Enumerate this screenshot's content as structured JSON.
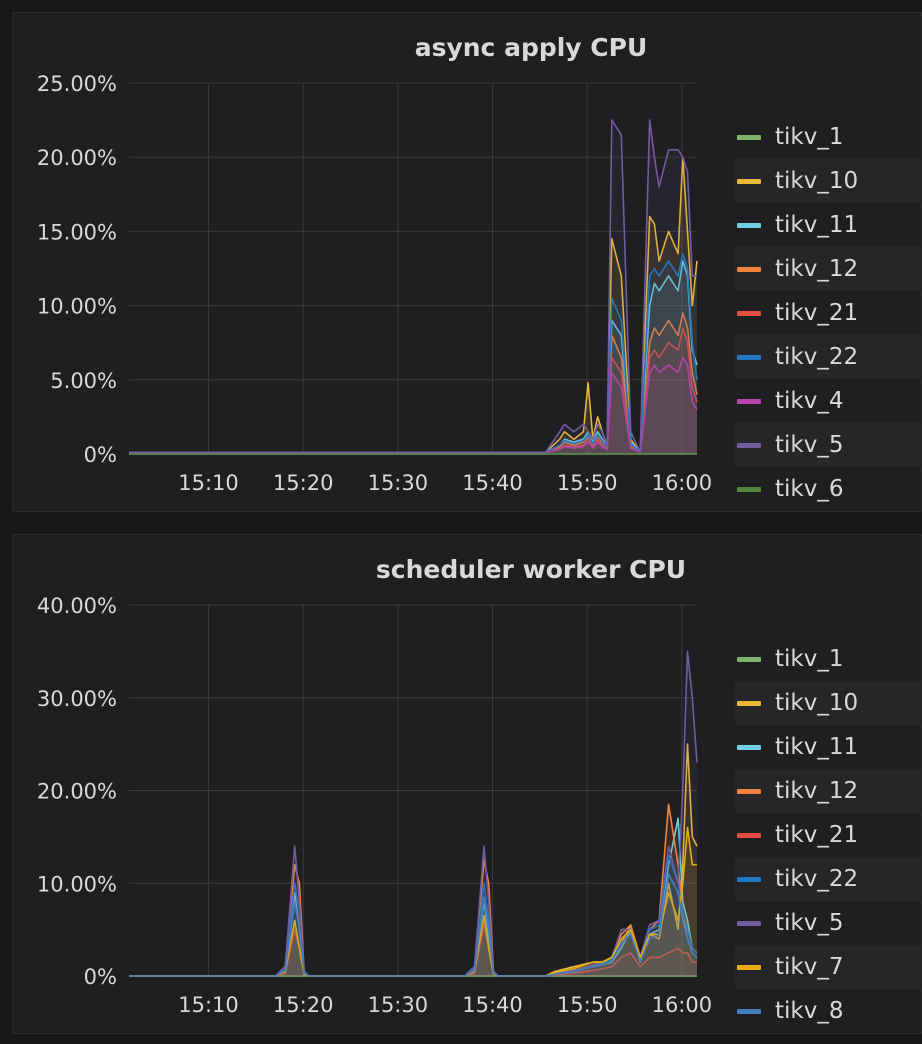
{
  "chart_data": [
    {
      "type": "line",
      "title": "async apply CPU",
      "xlabel": "",
      "ylabel": "",
      "y_unit": "percent",
      "ylim": [
        0,
        25
      ],
      "y_ticks": [
        "0%",
        "5.00%",
        "10.00%",
        "15.00%",
        "20.00%",
        "25.00%"
      ],
      "y_tick_values": [
        0,
        5,
        10,
        15,
        20,
        25
      ],
      "x_ticks": [
        "15:10",
        "15:20",
        "15:30",
        "15:40",
        "15:50",
        "16:00"
      ],
      "x_range_minutes": [
        0,
        60
      ],
      "x_tick_values": [
        8.4,
        18.4,
        28.4,
        38.4,
        48.4,
        58.4
      ],
      "grid": true,
      "legend_position": "right",
      "x": [
        0,
        44,
        45.5,
        46,
        47,
        48,
        48.5,
        49,
        49.5,
        50,
        50.5,
        51,
        52,
        53,
        54,
        55,
        55.5,
        56,
        57,
        58,
        58.5,
        59,
        59.5,
        60
      ],
      "series": [
        {
          "name": "tikv_1",
          "color": "#7eb26d",
          "values": [
            0,
            0,
            0,
            0,
            0,
            0,
            0,
            0,
            0,
            0,
            0,
            0,
            0,
            0,
            0,
            0,
            0,
            0,
            0,
            0,
            0,
            0,
            0,
            0
          ]
        },
        {
          "name": "tikv_10",
          "color": "#eab839",
          "values": [
            0.1,
            0.1,
            1.0,
            1.5,
            1.0,
            1.5,
            4.8,
            1.0,
            2.5,
            1.5,
            0.5,
            14.5,
            12.0,
            1.0,
            0.1,
            16.0,
            15.5,
            13.0,
            15.0,
            13.5,
            20.0,
            15.0,
            10.0,
            13.0
          ]
        },
        {
          "name": "tikv_11",
          "color": "#6ed0e0",
          "values": [
            0.1,
            0.1,
            0.5,
            1.0,
            0.8,
            1.0,
            1.5,
            0.8,
            1.5,
            1.0,
            0.5,
            9.0,
            8.0,
            0.8,
            0.1,
            10.0,
            11.5,
            11.0,
            12.0,
            11.0,
            13.0,
            12.0,
            7.0,
            6.0
          ]
        },
        {
          "name": "tikv_12",
          "color": "#ef843c",
          "values": [
            0.1,
            0.1,
            0.5,
            0.8,
            0.6,
            0.8,
            1.2,
            0.6,
            1.2,
            0.8,
            0.4,
            8.0,
            6.5,
            0.6,
            0.1,
            7.5,
            8.5,
            8.0,
            9.0,
            8.0,
            9.5,
            8.5,
            5.5,
            4.0
          ]
        },
        {
          "name": "tikv_21",
          "color": "#e24d42",
          "values": [
            0.1,
            0.1,
            0.4,
            0.6,
            0.5,
            0.6,
            1.0,
            0.5,
            1.0,
            0.6,
            0.3,
            6.5,
            5.5,
            0.5,
            0.1,
            6.5,
            7.0,
            6.5,
            7.5,
            7.0,
            8.5,
            7.5,
            4.5,
            3.5
          ]
        },
        {
          "name": "tikv_22",
          "color": "#1f78c1",
          "values": [
            0.1,
            0.1,
            0.6,
            0.9,
            0.7,
            0.9,
            1.3,
            0.7,
            1.3,
            0.9,
            0.4,
            10.5,
            9.0,
            0.7,
            0.1,
            12.0,
            12.5,
            12.0,
            13.0,
            12.0,
            13.5,
            12.5,
            7.5,
            5.0
          ]
        },
        {
          "name": "tikv_4",
          "color": "#ba43a9",
          "values": [
            0.1,
            0.1,
            0.3,
            0.5,
            0.4,
            0.5,
            0.8,
            0.4,
            0.8,
            0.5,
            0.3,
            5.5,
            4.5,
            0.4,
            0.1,
            5.5,
            6.0,
            5.5,
            6.0,
            5.5,
            6.5,
            6.0,
            3.5,
            3.0
          ]
        },
        {
          "name": "tikv_5",
          "color": "#705da0",
          "values": [
            0.1,
            0.1,
            1.5,
            2.0,
            1.5,
            2.0,
            1.5,
            1.0,
            2.0,
            1.5,
            0.5,
            22.5,
            21.5,
            1.5,
            0.1,
            22.5,
            20.0,
            18.0,
            20.5,
            20.5,
            20.0,
            19.0,
            12.0,
            12.0
          ]
        },
        {
          "name": "tikv_6",
          "color": "#508642",
          "values": [
            0,
            0,
            0,
            0,
            0,
            0,
            0,
            0,
            0,
            0,
            0,
            0,
            0,
            0,
            0,
            0,
            0,
            0,
            0,
            0,
            0,
            0,
            0,
            0
          ]
        }
      ]
    },
    {
      "type": "line",
      "title": "scheduler worker CPU",
      "xlabel": "",
      "ylabel": "",
      "y_unit": "percent",
      "ylim": [
        0,
        40
      ],
      "y_ticks": [
        "0%",
        "10.00%",
        "20.00%",
        "30.00%",
        "40.00%"
      ],
      "y_tick_values": [
        0,
        10,
        20,
        30,
        40
      ],
      "x_ticks": [
        "15:10",
        "15:20",
        "15:30",
        "15:40",
        "15:50",
        "16:00"
      ],
      "x_range_minutes": [
        0,
        60
      ],
      "x_tick_values": [
        8.4,
        18.4,
        28.4,
        38.4,
        48.4,
        58.4
      ],
      "grid": true,
      "legend_position": "right",
      "x": [
        0,
        14,
        15.5,
        16.5,
        17.5,
        18,
        18.5,
        19,
        35.5,
        36.5,
        37.5,
        38,
        38.5,
        39,
        44,
        45,
        47,
        49,
        50,
        51,
        52,
        53,
        54,
        55,
        56,
        57,
        58,
        58.5,
        59,
        59.5,
        60
      ],
      "series": [
        {
          "name": "tikv_1",
          "color": "#7eb26d",
          "values": [
            0,
            0,
            0,
            0,
            0,
            0,
            0,
            0,
            0,
            0,
            0,
            0,
            0,
            0,
            0,
            0,
            0,
            0,
            0,
            0,
            0,
            0,
            0,
            0,
            0,
            0,
            0,
            0,
            0,
            0,
            0
          ]
        },
        {
          "name": "tikv_10",
          "color": "#eab839",
          "values": [
            0,
            0,
            0,
            0.5,
            6.0,
            3.0,
            0.2,
            0,
            0,
            0.5,
            6.5,
            3.0,
            0.2,
            0,
            0,
            0.5,
            1.0,
            1.5,
            1.5,
            2.0,
            3.5,
            5.5,
            2.0,
            4.5,
            4.0,
            10.0,
            5.0,
            12.0,
            25.0,
            15.0,
            14.0
          ]
        },
        {
          "name": "tikv_11",
          "color": "#6ed0e0",
          "values": [
            0,
            0,
            0,
            1.0,
            9.0,
            5.0,
            0.3,
            0,
            0,
            1.0,
            8.0,
            4.0,
            0.3,
            0,
            0,
            0.2,
            0.5,
            1.0,
            1.2,
            1.5,
            3.0,
            5.0,
            1.5,
            4.5,
            5.0,
            12.0,
            17.0,
            8.0,
            6.0,
            3.0,
            2.5
          ]
        },
        {
          "name": "tikv_12",
          "color": "#ef843c",
          "values": [
            0,
            0,
            0,
            0.5,
            12.0,
            10.0,
            0.5,
            0,
            0,
            0.5,
            12.5,
            10.0,
            0.5,
            0,
            0,
            0.3,
            0.6,
            1.2,
            1.5,
            2.0,
            4.5,
            5.5,
            2.0,
            5.0,
            6.0,
            18.5,
            12.0,
            7.0,
            4.0,
            2.5,
            2.0
          ]
        },
        {
          "name": "tikv_21",
          "color": "#e24d42",
          "values": [
            0,
            0,
            0,
            0.3,
            5.0,
            3.0,
            0.2,
            0,
            0,
            0.3,
            5.5,
            3.0,
            0.2,
            0,
            0,
            0.1,
            0.3,
            0.6,
            0.8,
            1.0,
            2.0,
            2.5,
            1.0,
            2.0,
            2.0,
            2.5,
            3.0,
            2.5,
            2.5,
            1.5,
            1.5
          ]
        },
        {
          "name": "tikv_22",
          "color": "#1f78c1",
          "values": [
            0,
            0,
            0,
            0.8,
            10.0,
            7.0,
            0.4,
            0,
            0,
            0.8,
            10.0,
            6.0,
            0.4,
            0,
            0,
            0.2,
            0.5,
            1.0,
            1.3,
            1.8,
            4.0,
            5.0,
            1.8,
            5.0,
            5.5,
            13.0,
            10.0,
            7.0,
            5.0,
            3.0,
            2.5
          ]
        },
        {
          "name": "tikv_5",
          "color": "#705da0",
          "values": [
            0,
            0,
            0,
            1.0,
            14.0,
            8.0,
            0.5,
            0,
            0,
            1.0,
            14.0,
            8.0,
            0.5,
            0,
            0,
            0.3,
            0.6,
            1.2,
            1.5,
            2.0,
            5.0,
            5.0,
            2.0,
            5.5,
            6.0,
            14.0,
            10.0,
            20.0,
            35.0,
            30.0,
            23.0
          ]
        },
        {
          "name": "tikv_7",
          "color": "#e5ac0e",
          "values": [
            0,
            0,
            0,
            0.5,
            6.0,
            3.0,
            0.2,
            0,
            0,
            0.5,
            6.5,
            3.0,
            0.2,
            0,
            0,
            0.4,
            0.8,
            1.5,
            1.5,
            2.0,
            4.0,
            5.0,
            2.0,
            4.5,
            4.5,
            9.0,
            6.0,
            10.0,
            16.0,
            12.0,
            12.0
          ]
        },
        {
          "name": "tikv_8",
          "color": "#447ebc",
          "values": [
            0,
            0,
            0,
            0.6,
            8.0,
            5.0,
            0.3,
            0,
            0,
            0.6,
            8.5,
            5.0,
            0.3,
            0,
            0,
            0.2,
            0.5,
            1.0,
            1.2,
            1.6,
            3.5,
            4.5,
            1.6,
            4.0,
            4.5,
            11.0,
            9.0,
            6.0,
            4.0,
            2.5,
            2.0
          ]
        }
      ]
    }
  ]
}
